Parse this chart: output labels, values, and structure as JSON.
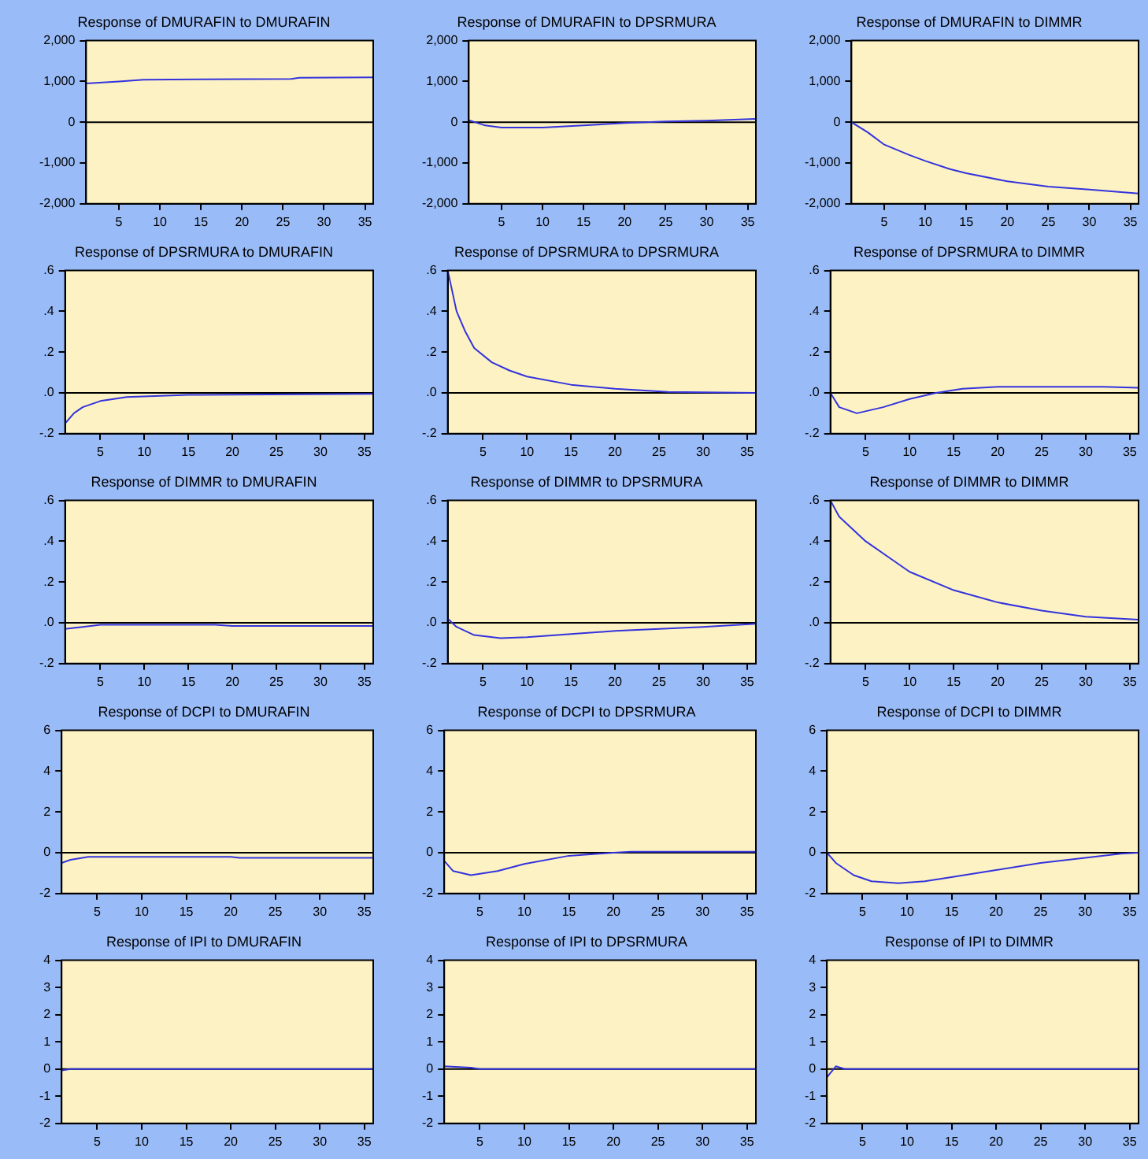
{
  "chart_data": [
    {
      "type": "line",
      "title": "Response of DMURAFIN to DMURAFIN",
      "x": [
        1,
        5,
        8,
        15,
        26,
        27,
        36
      ],
      "values": [
        950,
        1000,
        1040,
        1050,
        1060,
        1090,
        1100
      ],
      "color": "#3333dd",
      "xlim": [
        1,
        36
      ],
      "xticks": [
        5,
        10,
        15,
        20,
        25,
        30,
        35
      ],
      "ylim": [
        -2000,
        2000
      ],
      "yticks": [
        {
          "value": -2000,
          "label": "-2,000"
        },
        {
          "value": -1000,
          "label": "-1,000"
        },
        0,
        {
          "value": 1000,
          "label": "1,000"
        },
        {
          "value": 2000,
          "label": "2,000"
        }
      ],
      "ref_lines": [
        {
          "axis": "y",
          "value": 0,
          "color": "#000000"
        }
      ]
    },
    {
      "type": "line",
      "title": "Response of DMURAFIN to DPSRMURA",
      "x": [
        1,
        3,
        5,
        10,
        15,
        20,
        25,
        30,
        36
      ],
      "values": [
        50,
        -80,
        -130,
        -130,
        -80,
        -20,
        20,
        40,
        80
      ],
      "color": "#3333dd",
      "xlim": [
        1,
        36
      ],
      "xticks": [
        5,
        10,
        15,
        20,
        25,
        30,
        35
      ],
      "ylim": [
        -2000,
        2000
      ],
      "yticks": [
        {
          "value": -2000,
          "label": "-2,000"
        },
        {
          "value": -1000,
          "label": "-1,000"
        },
        0,
        {
          "value": 1000,
          "label": "1,000"
        },
        {
          "value": 2000,
          "label": "2,000"
        }
      ],
      "ref_lines": [
        {
          "axis": "y",
          "value": 0,
          "color": "#000000"
        }
      ]
    },
    {
      "type": "line",
      "title": "Response of DMURAFIN to DIMMR",
      "x": [
        1,
        3,
        5,
        8,
        10,
        13,
        15,
        20,
        25,
        30,
        36
      ],
      "values": [
        0,
        -250,
        -550,
        -800,
        -950,
        -1150,
        -1250,
        -1450,
        -1580,
        -1650,
        -1750
      ],
      "color": "#3333dd",
      "xlim": [
        1,
        36
      ],
      "xticks": [
        5,
        10,
        15,
        20,
        25,
        30,
        35
      ],
      "ylim": [
        -2000,
        2000
      ],
      "yticks": [
        {
          "value": -2000,
          "label": "-2,000"
        },
        {
          "value": -1000,
          "label": "-1,000"
        },
        0,
        {
          "value": 1000,
          "label": "1,000"
        },
        {
          "value": 2000,
          "label": "2,000"
        }
      ],
      "ref_lines": [
        {
          "axis": "y",
          "value": 0,
          "color": "#000000"
        }
      ]
    },
    {
      "type": "line",
      "title": "Response of DPSRMURA to DMURAFIN",
      "x": [
        1,
        2,
        3,
        5,
        8,
        15,
        36
      ],
      "values": [
        -0.15,
        -0.1,
        -0.07,
        -0.04,
        -0.02,
        -0.01,
        -0.005
      ],
      "color": "#3333dd",
      "xlim": [
        1,
        36
      ],
      "xticks": [
        5,
        10,
        15,
        20,
        25,
        30,
        35
      ],
      "ylim": [
        -0.2,
        0.6
      ],
      "yticks": [
        {
          "value": -0.2,
          "label": "-.2"
        },
        {
          "value": 0,
          "label": ".0"
        },
        {
          "value": 0.2,
          "label": ".2"
        },
        {
          "value": 0.4,
          "label": ".4"
        },
        {
          "value": 0.6,
          "label": ".6"
        }
      ],
      "ref_lines": [
        {
          "axis": "y",
          "value": 0,
          "color": "#000000"
        }
      ]
    },
    {
      "type": "line",
      "title": "Response of DPSRMURA to DPSRMURA",
      "x": [
        1,
        2,
        3,
        4,
        6,
        8,
        10,
        15,
        20,
        26,
        36
      ],
      "values": [
        0.6,
        0.4,
        0.3,
        0.22,
        0.15,
        0.11,
        0.08,
        0.04,
        0.02,
        0.005,
        0
      ],
      "color": "#3333dd",
      "xlim": [
        1,
        36
      ],
      "xticks": [
        5,
        10,
        15,
        20,
        25,
        30,
        35
      ],
      "ylim": [
        -0.2,
        0.6
      ],
      "yticks": [
        {
          "value": -0.2,
          "label": "-.2"
        },
        {
          "value": 0,
          "label": ".0"
        },
        {
          "value": 0.2,
          "label": ".2"
        },
        {
          "value": 0.4,
          "label": ".4"
        },
        {
          "value": 0.6,
          "label": ".6"
        }
      ],
      "ref_lines": [
        {
          "axis": "y",
          "value": 0,
          "color": "#000000"
        }
      ]
    },
    {
      "type": "line",
      "title": "Response of DPSRMURA to DIMMR",
      "x": [
        1,
        2,
        4,
        7,
        10,
        13,
        16,
        20,
        32,
        36
      ],
      "values": [
        0,
        -0.07,
        -0.1,
        -0.07,
        -0.03,
        0,
        0.02,
        0.03,
        0.03,
        0.025
      ],
      "color": "#3333dd",
      "xlim": [
        1,
        36
      ],
      "xticks": [
        5,
        10,
        15,
        20,
        25,
        30,
        35
      ],
      "ylim": [
        -0.2,
        0.6
      ],
      "yticks": [
        {
          "value": -0.2,
          "label": "-.2"
        },
        {
          "value": 0,
          "label": ".0"
        },
        {
          "value": 0.2,
          "label": ".2"
        },
        {
          "value": 0.4,
          "label": ".4"
        },
        {
          "value": 0.6,
          "label": ".6"
        }
      ],
      "ref_lines": [
        {
          "axis": "y",
          "value": 0,
          "color": "#000000"
        }
      ]
    },
    {
      "type": "line",
      "title": "Response of DIMMR to DMURAFIN",
      "x": [
        1,
        3,
        5,
        18,
        20,
        36
      ],
      "values": [
        -0.03,
        -0.02,
        -0.01,
        -0.01,
        -0.015,
        -0.015
      ],
      "color": "#3333dd",
      "xlim": [
        1,
        36
      ],
      "xticks": [
        5,
        10,
        15,
        20,
        25,
        30,
        35
      ],
      "ylim": [
        -0.2,
        0.6
      ],
      "yticks": [
        {
          "value": -0.2,
          "label": "-.2"
        },
        {
          "value": 0,
          "label": ".0"
        },
        {
          "value": 0.2,
          "label": ".2"
        },
        {
          "value": 0.4,
          "label": ".4"
        },
        {
          "value": 0.6,
          "label": ".6"
        }
      ],
      "ref_lines": [
        {
          "axis": "y",
          "value": 0,
          "color": "#000000"
        }
      ]
    },
    {
      "type": "line",
      "title": "Response of DIMMR to DPSRMURA",
      "x": [
        1,
        2,
        4,
        7,
        10,
        15,
        20,
        25,
        30,
        36
      ],
      "values": [
        0.02,
        -0.02,
        -0.06,
        -0.075,
        -0.07,
        -0.055,
        -0.04,
        -0.03,
        -0.02,
        -0.005
      ],
      "color": "#3333dd",
      "xlim": [
        1,
        36
      ],
      "xticks": [
        5,
        10,
        15,
        20,
        25,
        30,
        35
      ],
      "ylim": [
        -0.2,
        0.6
      ],
      "yticks": [
        {
          "value": -0.2,
          "label": "-.2"
        },
        {
          "value": 0,
          "label": ".0"
        },
        {
          "value": 0.2,
          "label": ".2"
        },
        {
          "value": 0.4,
          "label": ".4"
        },
        {
          "value": 0.6,
          "label": ".6"
        }
      ],
      "ref_lines": [
        {
          "axis": "y",
          "value": 0,
          "color": "#000000"
        }
      ]
    },
    {
      "type": "line",
      "title": "Response of DIMMR to DIMMR",
      "x": [
        1,
        2,
        5,
        8,
        10,
        15,
        20,
        25,
        30,
        36
      ],
      "values": [
        0.6,
        0.52,
        0.4,
        0.31,
        0.25,
        0.16,
        0.1,
        0.06,
        0.03,
        0.015
      ],
      "color": "#3333dd",
      "xlim": [
        1,
        36
      ],
      "xticks": [
        5,
        10,
        15,
        20,
        25,
        30,
        35
      ],
      "ylim": [
        -0.2,
        0.6
      ],
      "yticks": [
        {
          "value": -0.2,
          "label": "-.2"
        },
        {
          "value": 0,
          "label": ".0"
        },
        {
          "value": 0.2,
          "label": ".2"
        },
        {
          "value": 0.4,
          "label": ".4"
        },
        {
          "value": 0.6,
          "label": ".6"
        }
      ],
      "ref_lines": [
        {
          "axis": "y",
          "value": 0,
          "color": "#000000"
        }
      ]
    },
    {
      "type": "line",
      "title": "Response of DCPI to DMURAFIN",
      "x": [
        1,
        2,
        4,
        20,
        21,
        36
      ],
      "values": [
        -0.5,
        -0.35,
        -0.2,
        -0.2,
        -0.25,
        -0.25
      ],
      "color": "#3333dd",
      "xlim": [
        1,
        36
      ],
      "xticks": [
        5,
        10,
        15,
        20,
        25,
        30,
        35
      ],
      "ylim": [
        -2,
        6
      ],
      "yticks": [
        -2,
        0,
        2,
        4,
        6
      ],
      "ref_lines": [
        {
          "axis": "y",
          "value": 0,
          "color": "#000000"
        }
      ]
    },
    {
      "type": "line",
      "title": "Response of DCPI to DPSRMURA",
      "x": [
        1,
        2,
        4,
        7,
        10,
        15,
        20,
        22,
        36
      ],
      "values": [
        -0.4,
        -0.9,
        -1.1,
        -0.9,
        -0.55,
        -0.15,
        0,
        0.05,
        0.05
      ],
      "color": "#3333dd",
      "xlim": [
        1,
        36
      ],
      "xticks": [
        5,
        10,
        15,
        20,
        25,
        30,
        35
      ],
      "ylim": [
        -2,
        6
      ],
      "yticks": [
        -2,
        0,
        2,
        4,
        6
      ],
      "ref_lines": [
        {
          "axis": "y",
          "value": 0,
          "color": "#000000"
        }
      ]
    },
    {
      "type": "line",
      "title": "Response of DCPI to DIMMR",
      "x": [
        1,
        2,
        4,
        6,
        9,
        12,
        15,
        20,
        25,
        30,
        34,
        36
      ],
      "values": [
        0,
        -0.5,
        -1.1,
        -1.4,
        -1.5,
        -1.4,
        -1.2,
        -0.85,
        -0.5,
        -0.25,
        -0.05,
        0
      ],
      "color": "#3333dd",
      "xlim": [
        1,
        36
      ],
      "xticks": [
        5,
        10,
        15,
        20,
        25,
        30,
        35
      ],
      "ylim": [
        -2,
        6
      ],
      "yticks": [
        -2,
        0,
        2,
        4,
        6
      ],
      "ref_lines": [
        {
          "axis": "y",
          "value": 0,
          "color": "#000000"
        }
      ]
    },
    {
      "type": "line",
      "title": "Response of IPI to DMURAFIN",
      "x": [
        1,
        2,
        36
      ],
      "values": [
        -0.05,
        0,
        0
      ],
      "color": "#3333dd",
      "xlim": [
        1,
        36
      ],
      "xticks": [
        5,
        10,
        15,
        20,
        25,
        30,
        35
      ],
      "ylim": [
        -2,
        4
      ],
      "yticks": [
        -2,
        -1,
        0,
        1,
        2,
        3,
        4
      ],
      "ref_lines": [
        {
          "axis": "y",
          "value": 0,
          "color": "#000000"
        }
      ]
    },
    {
      "type": "line",
      "title": "Response of IPI to DPSRMURA",
      "x": [
        1,
        4,
        5,
        36
      ],
      "values": [
        0.1,
        0.05,
        0,
        0
      ],
      "color": "#3333dd",
      "xlim": [
        1,
        36
      ],
      "xticks": [
        5,
        10,
        15,
        20,
        25,
        30,
        35
      ],
      "ylim": [
        -2,
        4
      ],
      "yticks": [
        -2,
        -1,
        0,
        1,
        2,
        3,
        4
      ],
      "ref_lines": [
        {
          "axis": "y",
          "value": 0,
          "color": "#000000"
        }
      ]
    },
    {
      "type": "line",
      "title": "Response of IPI to DIMMR",
      "x": [
        1,
        2,
        3,
        36
      ],
      "values": [
        -0.3,
        0.1,
        0,
        0
      ],
      "color": "#3333dd",
      "xlim": [
        1,
        36
      ],
      "xticks": [
        5,
        10,
        15,
        20,
        25,
        30,
        35
      ],
      "ylim": [
        -2,
        4
      ],
      "yticks": [
        -2,
        -1,
        0,
        1,
        2,
        3,
        4
      ],
      "ref_lines": [
        {
          "axis": "y",
          "value": 0,
          "color": "#000000"
        }
      ]
    }
  ]
}
